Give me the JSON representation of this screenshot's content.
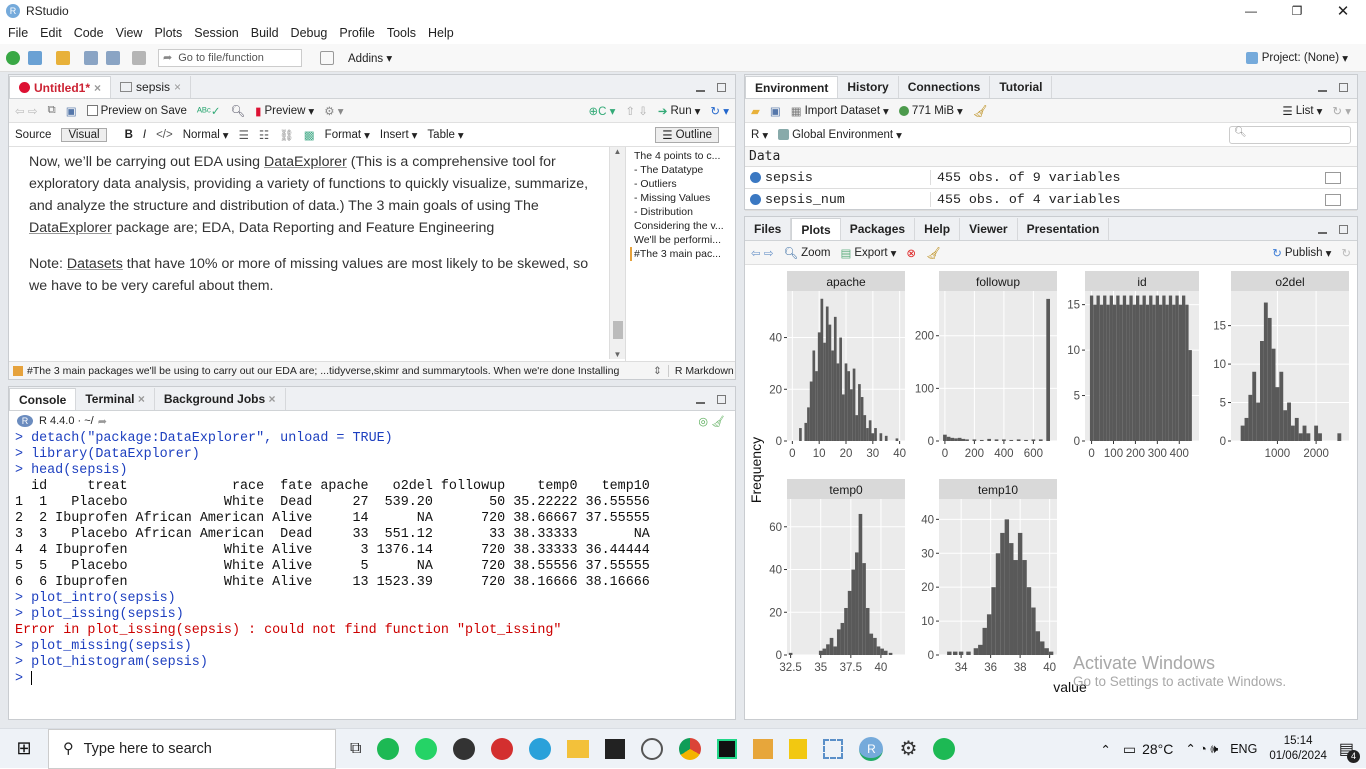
{
  "app": {
    "title": "RStudio",
    "project": "Project: (None)"
  },
  "menu": [
    "File",
    "Edit",
    "Code",
    "View",
    "Plots",
    "Session",
    "Build",
    "Debug",
    "Profile",
    "Tools",
    "Help"
  ],
  "toolbar": {
    "goto_placeholder": "Go to file/function",
    "addins": "Addins"
  },
  "editor": {
    "tabs": [
      {
        "label": "Untitled1*"
      },
      {
        "label": "sepsis"
      }
    ],
    "preview_on_save": "Preview on Save",
    "preview": "Preview",
    "run": "Run",
    "source": "Source",
    "visual": "Visual",
    "normal": "Normal",
    "format": "Format",
    "insert": "Insert",
    "table": "Table",
    "outline_btn": "Outline",
    "para1_a": "Now, we’ll be carrying out EDA using ",
    "para1_link": "DataExplorer",
    "para1_b": " (This is a comprehensive tool for exploratory data analysis, providing a variety of functions to quickly visualize, summarize, and analyze the structure and distribution of data.) The 3 main goals of using The ",
    "para1_link2": "DataExplorer",
    "para1_c": " package are; EDA, Data Reporting and Feature Engineering",
    "para2_a": "Note: ",
    "para2_link": "Datasets",
    "para2_b": " that have  10% or more of missing values are most likely to be skewed, so we have to be very careful about them.",
    "outline": [
      "The 4 points to c...",
      "- The Datatype",
      "- Outliers",
      "- Missing Values",
      "- Distribution",
      "Considering the v...",
      "We'll be performi...",
      "#The 3 main pac..."
    ],
    "status": "#The 3 main packages we'll be using to carry out our EDA are; ...tidyverse,skimr and summarytools. When we're done Installing",
    "mode": "R Markdown"
  },
  "console": {
    "tabs": [
      "Console",
      "Terminal",
      "Background Jobs"
    ],
    "r_version": "R 4.4.0 · ~/",
    "lines": [
      {
        "t": "> detach(\"package:DataExplorer\", unload = TRUE)",
        "c": "blue"
      },
      {
        "t": "> library(DataExplorer)",
        "c": "blue"
      },
      {
        "t": "> head(sepsis)",
        "c": "blue"
      },
      {
        "t": "  id     treat             race  fate apache   o2del followup    temp0   temp10",
        "c": ""
      },
      {
        "t": "1  1   Placebo            White  Dead     27  539.20       50 35.22222 36.55556",
        "c": ""
      },
      {
        "t": "2  2 Ibuprofen African American Alive     14      NA      720 38.66667 37.55555",
        "c": ""
      },
      {
        "t": "3  3   Placebo African American  Dead     33  551.12       33 38.33333       NA",
        "c": ""
      },
      {
        "t": "4  4 Ibuprofen            White Alive      3 1376.14      720 38.33333 36.44444",
        "c": ""
      },
      {
        "t": "5  5   Placebo            White Alive      5      NA      720 38.55556 37.55555",
        "c": ""
      },
      {
        "t": "6  6 Ibuprofen            White Alive     13 1523.39      720 38.16666 38.16666",
        "c": ""
      },
      {
        "t": "> plot_intro(sepsis)",
        "c": "blue"
      },
      {
        "t": "> plot_issing(sepsis)",
        "c": "blue"
      },
      {
        "t": "Error in plot_issing(sepsis) : could not find function \"plot_issing\"",
        "c": "red"
      },
      {
        "t": "> plot_missing(sepsis)",
        "c": "blue"
      },
      {
        "t": "> plot_histogram(sepsis)",
        "c": "blue"
      },
      {
        "t": "> ",
        "c": "blue"
      }
    ]
  },
  "environment": {
    "tabs": [
      "Environment",
      "History",
      "Connections",
      "Tutorial"
    ],
    "import": "Import Dataset",
    "memory": "771 MiB",
    "list": "List",
    "lang": "R",
    "scope": "Global Environment",
    "section": "Data",
    "rows": [
      {
        "name": "sepsis",
        "value": "455 obs. of 9 variables"
      },
      {
        "name": "sepsis_num",
        "value": "455 obs. of 4 variables"
      }
    ]
  },
  "plots": {
    "tabs": [
      "Files",
      "Plots",
      "Packages",
      "Help",
      "Viewer",
      "Presentation"
    ],
    "zoom": "Zoom",
    "export": "Export",
    "publish": "Publish"
  },
  "chart_data": {
    "type": "bar",
    "ylabel": "Frequency",
    "xlabel": "value",
    "facets": [
      {
        "name": "apache",
        "xlim": [
          -2,
          42
        ],
        "ylim": [
          0,
          58
        ],
        "xticks": [
          0,
          10,
          20,
          30,
          40
        ],
        "yticks": [
          0,
          20,
          40
        ],
        "bins": [
          [
            3,
            5
          ],
          [
            5,
            7
          ],
          [
            6,
            13
          ],
          [
            7,
            23
          ],
          [
            8,
            35
          ],
          [
            9,
            27
          ],
          [
            10,
            42
          ],
          [
            11,
            55
          ],
          [
            12,
            38
          ],
          [
            13,
            52
          ],
          [
            14,
            45
          ],
          [
            15,
            35
          ],
          [
            16,
            48
          ],
          [
            17,
            30
          ],
          [
            18,
            40
          ],
          [
            19,
            18
          ],
          [
            20,
            30
          ],
          [
            21,
            27
          ],
          [
            22,
            20
          ],
          [
            23,
            28
          ],
          [
            24,
            10
          ],
          [
            25,
            22
          ],
          [
            26,
            17
          ],
          [
            27,
            10
          ],
          [
            28,
            5
          ],
          [
            29,
            8
          ],
          [
            30,
            3
          ],
          [
            31,
            5
          ],
          [
            33,
            3
          ],
          [
            35,
            2
          ],
          [
            39,
            1
          ]
        ]
      },
      {
        "name": "followup",
        "xlim": [
          -40,
          760
        ],
        "ylim": [
          0,
          285
        ],
        "xticks": [
          0,
          200,
          400,
          600
        ],
        "yticks": [
          0,
          100,
          200
        ],
        "bins": [
          [
            0,
            12
          ],
          [
            25,
            8
          ],
          [
            50,
            6
          ],
          [
            75,
            5
          ],
          [
            100,
            6
          ],
          [
            125,
            4
          ],
          [
            150,
            3
          ],
          [
            200,
            3
          ],
          [
            250,
            2
          ],
          [
            300,
            4
          ],
          [
            350,
            3
          ],
          [
            400,
            3
          ],
          [
            450,
            2
          ],
          [
            500,
            3
          ],
          [
            550,
            2
          ],
          [
            600,
            3
          ],
          [
            650,
            3
          ],
          [
            700,
            270
          ]
        ]
      },
      {
        "name": "id",
        "xlim": [
          -30,
          490
        ],
        "ylim": [
          0,
          16.5
        ],
        "xticks": [
          0,
          100,
          200,
          300,
          400
        ],
        "yticks": [
          0,
          5,
          10,
          15
        ],
        "bins": [
          [
            0,
            16
          ],
          [
            15,
            15
          ],
          [
            30,
            16
          ],
          [
            45,
            15
          ],
          [
            60,
            16
          ],
          [
            75,
            15
          ],
          [
            90,
            16
          ],
          [
            105,
            15
          ],
          [
            120,
            16
          ],
          [
            135,
            15
          ],
          [
            150,
            16
          ],
          [
            165,
            15
          ],
          [
            180,
            16
          ],
          [
            195,
            15
          ],
          [
            210,
            16
          ],
          [
            225,
            15
          ],
          [
            240,
            16
          ],
          [
            255,
            15
          ],
          [
            270,
            16
          ],
          [
            285,
            15
          ],
          [
            300,
            16
          ],
          [
            315,
            15
          ],
          [
            330,
            16
          ],
          [
            345,
            15
          ],
          [
            360,
            16
          ],
          [
            375,
            15
          ],
          [
            390,
            16
          ],
          [
            405,
            15
          ],
          [
            420,
            16
          ],
          [
            435,
            15
          ],
          [
            450,
            10
          ]
        ]
      },
      {
        "name": "o2del",
        "xlim": [
          -200,
          2850
        ],
        "ylim": [
          0,
          19.5
        ],
        "xticks": [
          1000,
          2000
        ],
        "yticks": [
          0,
          5,
          10,
          15
        ],
        "bins": [
          [
            100,
            2
          ],
          [
            200,
            3
          ],
          [
            300,
            6
          ],
          [
            400,
            9
          ],
          [
            500,
            5
          ],
          [
            600,
            13
          ],
          [
            700,
            18
          ],
          [
            800,
            16
          ],
          [
            900,
            12
          ],
          [
            1000,
            7
          ],
          [
            1100,
            9
          ],
          [
            1200,
            4
          ],
          [
            1300,
            5
          ],
          [
            1400,
            2
          ],
          [
            1500,
            3
          ],
          [
            1600,
            1
          ],
          [
            1700,
            2
          ],
          [
            1800,
            1
          ],
          [
            2000,
            2
          ],
          [
            2100,
            1
          ],
          [
            2600,
            1
          ]
        ]
      },
      {
        "name": "temp0",
        "xlim": [
          32.2,
          42
        ],
        "ylim": [
          0,
          73
        ],
        "xticks": [
          32.5,
          35.0,
          37.5,
          40.0
        ],
        "yticks": [
          0,
          20,
          40,
          60
        ],
        "bins": [
          [
            32.5,
            1
          ],
          [
            35.0,
            2
          ],
          [
            35.3,
            3
          ],
          [
            35.6,
            5
          ],
          [
            35.9,
            8
          ],
          [
            36.2,
            4
          ],
          [
            36.5,
            12
          ],
          [
            36.8,
            15
          ],
          [
            37.1,
            22
          ],
          [
            37.4,
            30
          ],
          [
            37.7,
            40
          ],
          [
            38.0,
            48
          ],
          [
            38.3,
            66
          ],
          [
            38.6,
            43
          ],
          [
            38.9,
            22
          ],
          [
            39.2,
            10
          ],
          [
            39.5,
            8
          ],
          [
            39.8,
            4
          ],
          [
            40.1,
            3
          ],
          [
            40.4,
            2
          ],
          [
            40.8,
            1
          ]
        ]
      },
      {
        "name": "temp10",
        "xlim": [
          32.5,
          40.5
        ],
        "ylim": [
          0,
          46
        ],
        "xticks": [
          34,
          36,
          38,
          40
        ],
        "yticks": [
          0,
          10,
          20,
          30,
          40
        ],
        "bins": [
          [
            33.2,
            1
          ],
          [
            33.6,
            1
          ],
          [
            34.0,
            1
          ],
          [
            34.5,
            1
          ],
          [
            35.0,
            2
          ],
          [
            35.3,
            3
          ],
          [
            35.6,
            8
          ],
          [
            35.9,
            12
          ],
          [
            36.2,
            20
          ],
          [
            36.5,
            30
          ],
          [
            36.8,
            36
          ],
          [
            37.1,
            40
          ],
          [
            37.4,
            33
          ],
          [
            37.7,
            28
          ],
          [
            38.0,
            36
          ],
          [
            38.3,
            28
          ],
          [
            38.6,
            20
          ],
          [
            38.9,
            14
          ],
          [
            39.2,
            7
          ],
          [
            39.5,
            4
          ],
          [
            39.8,
            2
          ],
          [
            40.1,
            1
          ]
        ]
      }
    ]
  },
  "watermark": {
    "line1": "Activate Windows",
    "line2": "Go to Settings to activate Windows."
  },
  "taskbar": {
    "search": "Type here to search",
    "weather": "28°C",
    "lang": "ENG",
    "time": "15:14",
    "date": "01/06/2024",
    "notif": "4"
  }
}
